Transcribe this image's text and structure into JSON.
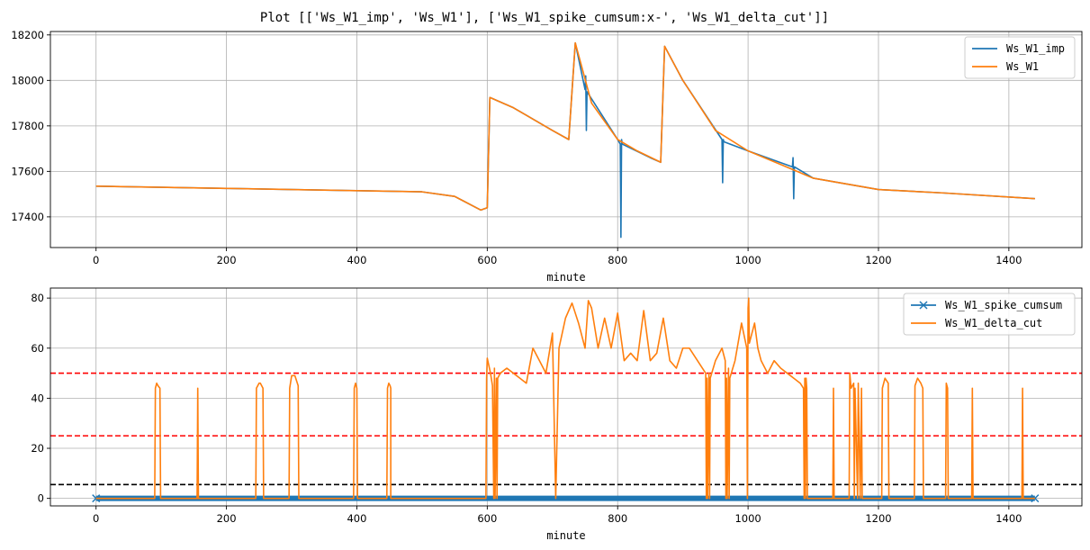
{
  "figure_title": "Plot [['Ws_W1_imp', 'Ws_W1'], ['Ws_W1_spike_cumsum:x-', 'Ws_W1_delta_cut']]",
  "colors": {
    "blue": "#1f77b4",
    "orange": "#ff7f0e",
    "red": "#ff0000",
    "black": "#000000",
    "grid": "#b0b0b0"
  },
  "chart_data": [
    {
      "type": "line",
      "xlabel": "minute",
      "xlim": [
        -70,
        1512
      ],
      "ylim": [
        17265,
        18215
      ],
      "x_ticks": [
        0,
        200,
        400,
        600,
        800,
        1000,
        1200,
        1400
      ],
      "x_tick_labels": [
        "0",
        "200",
        "400",
        "600",
        "800",
        "1000",
        "1200",
        "1400"
      ],
      "y_ticks": [
        17400,
        17600,
        17800,
        18000,
        18200
      ],
      "y_tick_labels": [
        "17400",
        "17600",
        "17800",
        "18000",
        "18200"
      ],
      "grid": true,
      "legend_position": "top-right",
      "series": [
        {
          "name": "Ws_W1_imp",
          "color": "#1f77b4",
          "x": [
            0,
            100,
            200,
            300,
            400,
            500,
            550,
            590,
            600,
            604,
            640,
            700,
            725,
            735,
            750,
            751,
            752,
            753,
            800,
            804,
            805,
            806,
            807,
            850,
            866,
            872,
            900,
            960,
            961,
            962,
            963,
            1000,
            1068,
            1069,
            1070,
            1071,
            1100,
            1200,
            1300,
            1440
          ],
          "y": [
            17535,
            17530,
            17525,
            17520,
            17515,
            17510,
            17490,
            17430,
            17440,
            17925,
            17880,
            17780,
            17740,
            18165,
            17960,
            18020,
            17780,
            17950,
            17740,
            17720,
            17310,
            17740,
            17720,
            17660,
            17640,
            18150,
            18000,
            17740,
            17550,
            17740,
            17730,
            17690,
            17620,
            17660,
            17480,
            17620,
            17570,
            17520,
            17505,
            17480
          ]
        },
        {
          "name": "Ws_W1",
          "color": "#ff7f0e",
          "x": [
            0,
            100,
            200,
            300,
            400,
            500,
            550,
            590,
            600,
            604,
            640,
            670,
            700,
            725,
            735,
            760,
            800,
            830,
            866,
            872,
            900,
            950,
            1000,
            1050,
            1100,
            1200,
            1300,
            1440
          ],
          "y": [
            17535,
            17530,
            17525,
            17520,
            17515,
            17510,
            17490,
            17430,
            17440,
            17925,
            17880,
            17830,
            17780,
            17740,
            18165,
            17900,
            17740,
            17690,
            17640,
            18150,
            18000,
            17780,
            17690,
            17630,
            17570,
            17520,
            17505,
            17480
          ]
        }
      ]
    },
    {
      "type": "line",
      "xlabel": "minute",
      "xlim": [
        -70,
        1512
      ],
      "ylim": [
        -3,
        84
      ],
      "x_ticks": [
        0,
        200,
        400,
        600,
        800,
        1000,
        1200,
        1400
      ],
      "x_tick_labels": [
        "0",
        "200",
        "400",
        "600",
        "800",
        "1000",
        "1200",
        "1400"
      ],
      "y_ticks": [
        0,
        20,
        40,
        60,
        80
      ],
      "y_tick_labels": [
        "0",
        "20",
        "40",
        "60",
        "80"
      ],
      "grid": true,
      "legend_position": "top-right",
      "hlines": [
        {
          "y": 50,
          "color": "#ff0000",
          "style": "dashed"
        },
        {
          "y": 25,
          "color": "#ff0000",
          "style": "dashed"
        },
        {
          "y": 5.5,
          "color": "#000000",
          "style": "dashed"
        }
      ],
      "series": [
        {
          "name": "Ws_W1_spike_cumsum",
          "color": "#1f77b4",
          "marker": "x",
          "x": [
            0,
            1440
          ],
          "y": [
            0,
            0
          ]
        },
        {
          "name": "Ws_W1_delta_cut",
          "color": "#ff7f0e",
          "x": [
            0,
            90,
            91,
            93,
            95,
            98,
            99,
            100,
            155,
            156,
            157,
            158,
            155,
            156,
            157,
            158,
            230,
            245,
            246,
            250,
            252,
            256,
            257,
            296,
            297,
            300,
            305,
            310,
            311,
            395,
            396,
            398,
            400,
            401,
            446,
            447,
            449,
            451,
            452,
            452,
            598,
            599,
            600,
            605,
            608,
            610,
            611,
            612,
            614,
            615,
            616,
            620,
            630,
            640,
            650,
            660,
            670,
            680,
            690,
            700,
            705,
            710,
            720,
            730,
            740,
            750,
            755,
            760,
            770,
            780,
            790,
            800,
            810,
            820,
            830,
            840,
            850,
            860,
            870,
            880,
            890,
            900,
            910,
            920,
            930,
            935,
            936,
            937,
            938,
            940,
            941,
            942,
            950,
            960,
            965,
            966,
            967,
            968,
            970,
            971,
            972,
            980,
            990,
            998,
            999,
            1000,
            1001,
            1002,
            1010,
            1015,
            1020,
            1030,
            1040,
            1050,
            1060,
            1070,
            1080,
            1085,
            1086,
            1087,
            1088,
            1089,
            1090,
            1091,
            1130,
            1131,
            1132,
            1155,
            1156,
            1158,
            1162,
            1163,
            1164,
            1168,
            1169,
            1172,
            1174,
            1175,
            1205,
            1206,
            1210,
            1215,
            1216,
            1255,
            1256,
            1260,
            1265,
            1268,
            1269,
            1270,
            1303,
            1304,
            1306,
            1307,
            1343,
            1344,
            1345,
            1420,
            1421,
            1422,
            1440
          ],
          "y": [
            0,
            0,
            44,
            46,
            45,
            44,
            0,
            0,
            0,
            44,
            0,
            0,
            0,
            0,
            0,
            0,
            0,
            0,
            44,
            46,
            46,
            44,
            0,
            0,
            44,
            49,
            49,
            45,
            0,
            0,
            44,
            46,
            44,
            0,
            0,
            44,
            46,
            45,
            44,
            0,
            0,
            48,
            56,
            50,
            45,
            0,
            52,
            0,
            48,
            0,
            48,
            50,
            52,
            50,
            48,
            46,
            60,
            55,
            50,
            66,
            0,
            60,
            72,
            78,
            70,
            60,
            79,
            76,
            60,
            72,
            60,
            74,
            55,
            58,
            55,
            75,
            55,
            58,
            72,
            55,
            52,
            60,
            60,
            56,
            52,
            50,
            0,
            48,
            0,
            50,
            0,
            48,
            55,
            60,
            55,
            0,
            48,
            0,
            52,
            0,
            48,
            55,
            70,
            60,
            0,
            76,
            80,
            62,
            70,
            60,
            55,
            50,
            55,
            52,
            50,
            48,
            46,
            44,
            0,
            48,
            0,
            48,
            44,
            0,
            0,
            44,
            0,
            0,
            50,
            44,
            46,
            0,
            44,
            0,
            46,
            0,
            44,
            0,
            0,
            44,
            48,
            46,
            0,
            0,
            45,
            48,
            46,
            44,
            0,
            0,
            0,
            46,
            44,
            0,
            0,
            44,
            0,
            0,
            44,
            0,
            0
          ]
        }
      ]
    }
  ]
}
